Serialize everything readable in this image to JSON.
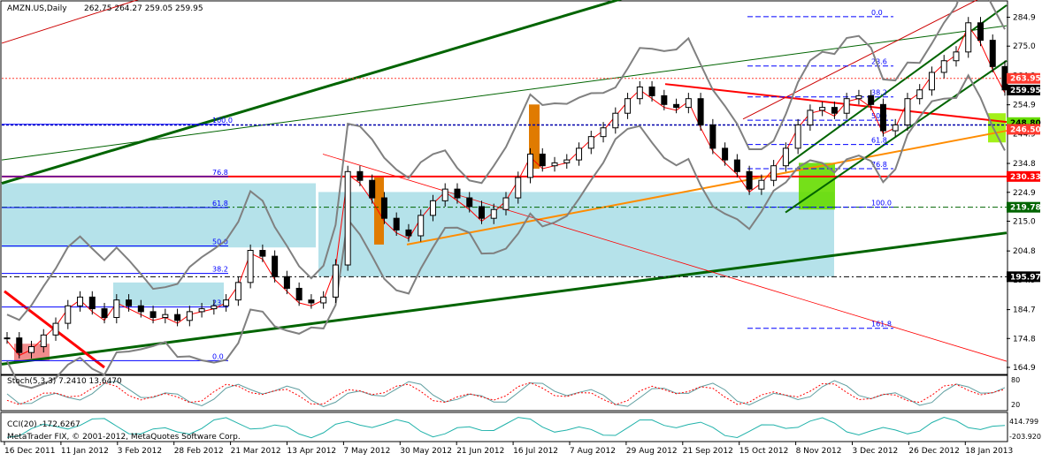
{
  "chart_data": [
    {
      "type": "candlestick",
      "title": "AMZN.US,Daily",
      "ohlc": {
        "open": 262.75,
        "high": 264.27,
        "low": 259.05,
        "close": 259.95
      },
      "ylim": [
        164.9,
        289.9
      ],
      "yticks": [
        284.9,
        275.0,
        264.9,
        254.9,
        244.9,
        234.8,
        224.9,
        215.0,
        204.8,
        194.9,
        184.7,
        174.8,
        164.9
      ],
      "price_markers": [
        {
          "value": 263.95,
          "label": "263.95",
          "color": "#ff3b30",
          "text_color": "#ffffff"
        },
        {
          "value": 259.95,
          "label": "259.95",
          "color": "#000000",
          "text_color": "#ffffff"
        },
        {
          "value": 248.8,
          "label": "248.80",
          "color": "#66dd00",
          "text_color": "#000000"
        },
        {
          "value": 246.5,
          "label": "246.50",
          "color": "#ff3b30",
          "text_color": "#ffffff"
        },
        {
          "value": 230.33,
          "label": "230.33",
          "color": "#ff0000",
          "text_color": "#ffffff"
        },
        {
          "value": 219.78,
          "label": "219.78",
          "color": "#006400",
          "text_color": "#ffffff"
        },
        {
          "value": 195.97,
          "label": "195.97",
          "color": "#000000",
          "text_color": "#ffffff"
        }
      ],
      "fib_left": [
        {
          "label": "100.0",
          "value": 248.2
        },
        {
          "label": "76.8",
          "value": 230.3
        },
        {
          "label": "61.8",
          "value": 219.7
        },
        {
          "label": "50.0",
          "value": 206.5
        },
        {
          "label": "38.2",
          "value": 197.1
        },
        {
          "label": "23.6",
          "value": 185.6
        },
        {
          "label": "0.0",
          "value": 167.2
        }
      ],
      "fib_right": [
        {
          "label": "0.0",
          "value": 285.1
        },
        {
          "label": "23.6",
          "value": 268.2
        },
        {
          "label": "38.2",
          "value": 257.6
        },
        {
          "label": "50.0",
          "value": 249.6
        },
        {
          "label": "61.8",
          "value": 241.3
        },
        {
          "label": "76.8",
          "value": 233.0
        },
        {
          "label": "100.0",
          "value": 219.8
        },
        {
          "label": "161.8",
          "value": 178.3
        }
      ],
      "close_series": [
        175,
        170,
        172,
        176,
        180,
        186,
        189,
        185,
        182,
        188,
        186,
        184,
        182,
        183,
        181,
        184,
        185,
        186,
        188,
        194,
        205,
        203,
        196,
        192,
        188,
        187,
        189,
        200,
        232,
        229,
        223,
        216,
        212,
        210,
        217,
        222,
        226,
        223,
        220,
        216,
        219,
        223,
        230,
        238,
        234,
        235,
        236,
        240,
        244,
        247,
        252,
        257,
        261,
        258,
        255,
        254,
        257,
        248,
        240,
        236,
        232,
        226,
        229,
        234,
        240,
        248,
        253,
        254,
        252,
        257,
        258,
        255,
        246,
        248,
        257,
        260,
        266,
        270,
        273,
        283,
        277,
        268,
        260
      ]
    },
    {
      "type": "line",
      "title": "Stoch(5,3,3) 7.2410 13.6470",
      "yticks": [
        "80",
        "20"
      ]
    },
    {
      "type": "line",
      "title": "CCI(20) -172.6267",
      "yticks": [
        "414.799",
        "-203.920"
      ]
    }
  ],
  "dates": [
    "16 Dec 2011",
    "11 Jan 2012",
    "3 Feb 2012",
    "28 Feb 2012",
    "21 Mar 2012",
    "13 Apr 2012",
    "7 May 2012",
    "30 May 2012",
    "21 Jun 2012",
    "16 Jul 2012",
    "7 Aug 2012",
    "29 Aug 2012",
    "21 Sep 2012",
    "15 Oct 2012",
    "8 Nov 2012",
    "3 Dec 2012",
    "26 Dec 2012",
    "18 Jan 2013"
  ],
  "copyright": "MetaTrader FIX, © 2001-2012, MetaQuotes Software Corp.",
  "colors": {
    "grid": "#c0c0c0",
    "bollinger": "#808080",
    "ma": "#ff0000",
    "trend_green": "#006400",
    "fib": "#0000ff",
    "zone": "#a8dde6"
  }
}
